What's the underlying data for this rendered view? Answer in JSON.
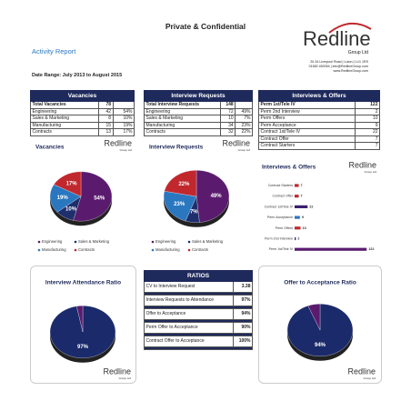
{
  "header": {
    "confidential": "Private & Confidential",
    "title": "Activity Report",
    "date_range": "Date Range:  July 2013 to August 2015",
    "logo": "Redline",
    "logo_sub": "Group Ltd",
    "address": [
      "20-34 Liverpool Road | Luton | LU1 1RS",
      "01582 450054 | info@RedlineGroup.com",
      "www.RedlineGroup.com"
    ]
  },
  "tables": [
    {
      "title": "Vacancies",
      "rows": [
        [
          "Total Vacancies",
          "78",
          ""
        ],
        [
          "Engineering",
          "42",
          "54%"
        ],
        [
          "Sales & Marketing",
          "8",
          "10%"
        ],
        [
          "Manufacturing",
          "15",
          "19%"
        ],
        [
          "Contracts",
          "13",
          "17%"
        ]
      ]
    },
    {
      "title": "Interview Requests",
      "rows": [
        [
          "Total Interview Requests",
          "148",
          ""
        ],
        [
          "Engineering",
          "72",
          "49%"
        ],
        [
          "Sales & Marketing",
          "10",
          "7%"
        ],
        [
          "Manufacturing",
          "34",
          "23%"
        ],
        [
          "Contracts",
          "32",
          "22%"
        ]
      ]
    },
    {
      "title": "Interviews & Offers",
      "rows": [
        [
          "Perm 1st/Tele IV",
          "122"
        ],
        [
          "Perm 2nd Interview",
          "2"
        ],
        [
          "Perm Offers",
          "10"
        ],
        [
          "Perm Acceptance",
          "9"
        ],
        [
          "Contract 1st/Tele IV",
          "22"
        ],
        [
          "Contract Offer",
          "7"
        ],
        [
          "Contract Starters",
          "7"
        ]
      ]
    }
  ],
  "charts": [
    {
      "type": "pie",
      "title": "Vacancies",
      "categories": [
        "Engineering",
        "Sales & Marketing",
        "Manufacturing",
        "Contracts"
      ],
      "values": [
        54,
        10,
        19,
        17
      ],
      "value_labels": [
        "54%",
        "10%",
        "19%",
        "17%"
      ],
      "colors": [
        "#5a1b6e",
        "#1f2f6e",
        "#2a77c0",
        "#c0282d"
      ]
    },
    {
      "type": "pie",
      "title": "Interview Requests",
      "categories": [
        "Engineering",
        "Sales & Marketing",
        "Manufacturing",
        "Contracts"
      ],
      "values": [
        49,
        7,
        23,
        22
      ],
      "value_labels": [
        "49%",
        "7%",
        "23%",
        "22%"
      ],
      "colors": [
        "#5a1b6e",
        "#1f2f6e",
        "#2a77c0",
        "#c0282d"
      ]
    },
    {
      "type": "bar",
      "title": "Interviews & Offers",
      "categories": [
        "Contract Starters",
        "Contract Offer",
        "Contract 1st/Tele IV",
        "Perm Acceptance",
        "Perm Offers",
        "Perm 2nd Interview",
        "Perm 1st/Tele IV"
      ],
      "values": [
        7,
        7,
        22,
        9,
        10,
        2,
        122
      ],
      "colors": [
        "#c0282d",
        "#c0282d",
        "#3a1f6e",
        "#2a77c0",
        "#c0282d",
        "#1f2f6e",
        "#5a1b6e"
      ]
    },
    {
      "type": "pie",
      "title": "Interview Attendance Ratio",
      "values": [
        97
      ],
      "value_labels": [
        "97%"
      ],
      "colors": [
        "#1b2a6b",
        "#5a1b6e"
      ]
    },
    {
      "type": "pie",
      "title": "Offer to Acceptance Ratio",
      "values": [
        94
      ],
      "value_labels": [
        "94%"
      ],
      "colors": [
        "#1b2a6b",
        "#5a1b6e"
      ]
    }
  ],
  "ratios": {
    "title": "RATIOS",
    "rows": [
      [
        "CV to Interview Request",
        "3.38"
      ],
      [
        "Interview Requests to Attendance",
        "97%"
      ],
      [
        "Offer to Acceptance",
        "94%"
      ],
      [
        "Perm Offer to Acceptance",
        "90%"
      ],
      [
        "Contract Offer to Acceptance",
        "100%"
      ]
    ]
  }
}
